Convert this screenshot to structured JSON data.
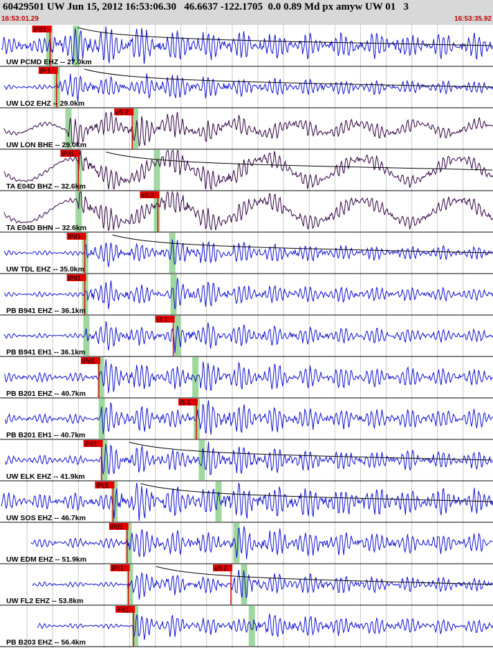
{
  "header": {
    "title": "60429501 UW Jun 15, 2012 16:53:06.30   46.6637 -122.1705  0.0 0.89 Md px amyw UW 01   3",
    "start_time": "16:53:01.29",
    "end_time": "16:53:35.92"
  },
  "colors": {
    "trace_blue": "#1010d0",
    "trace_purple": "#300040",
    "pick_red": "#e00000",
    "pick_band_green": "#9fd89f",
    "header_bg": "#d8d8d8"
  },
  "traces": [
    {
      "label": "UW PCMD EHZ -- 27.0km",
      "color": "blue",
      "style": "noise",
      "p_pick": {
        "label": "iPd1",
        "time": 3.8
      },
      "s_pick": null,
      "green": [
        3.7,
        5.8
      ],
      "decay_curve": true,
      "end": 38.6
    },
    {
      "label": "UW LO2 EHZ -- 29.0km",
      "color": "blue",
      "style": "quiet",
      "p_pick": {
        "label": "iP 1",
        "time": 4.3
      },
      "s_pick": null,
      "green": [
        4.3
      ],
      "decay_curve": true,
      "end": 38.8
    },
    {
      "label": "UW LON BHE -- 29.0km",
      "color": "purple",
      "style": "long",
      "p_pick": null,
      "s_pick": {
        "label": "eS 2",
        "time": 10.2
      },
      "green": [
        5.2,
        10.4
      ],
      "decay_curve": false,
      "end": 38.8
    },
    {
      "label": "TA E04D BHZ -- 32.6km",
      "color": "purple",
      "style": "swell",
      "p_pick": {
        "label": "iPd1",
        "time": 6.0
      },
      "s_pick": null,
      "green": [
        6.0,
        12.1
      ],
      "decay_curve": true,
      "end": 39.2
    },
    {
      "label": "TA E04D BHN -- 32.6km",
      "color": "purple",
      "style": "swell",
      "p_pick": null,
      "s_pick": {
        "label": "eS 2",
        "time": 12.2
      },
      "green": [
        6.0,
        12.1
      ],
      "decay_curve": false,
      "end": 39.2
    },
    {
      "label": "UW TDL EHZ -- 35.0km",
      "color": "blue",
      "style": "quiet",
      "p_pick": {
        "label": "iPd1",
        "time": 6.5
      },
      "s_pick": null,
      "green": [
        6.5,
        13.3
      ],
      "decay_curve": true,
      "end": 39.6
    },
    {
      "label": "PB B941 EHZ -- 36.1km",
      "color": "blue",
      "style": "quiet",
      "p_pick": {
        "label": "iPd1",
        "time": 6.5
      },
      "s_pick": null,
      "green": [
        6.5,
        13.4
      ],
      "decay_curve": false,
      "end": 40.1
    },
    {
      "label": "PB B941 EH1 -- 36.1km",
      "color": "blue",
      "style": "quiet",
      "p_pick": null,
      "s_pick": {
        "label": "iS 1",
        "time": 13.4
      },
      "green": [
        6.6,
        13.7
      ],
      "decay_curve": false,
      "end": 40.1
    },
    {
      "label": "PB B201 EHZ -- 40.7km",
      "color": "blue",
      "style": "busy",
      "p_pick": {
        "label": "iPd1",
        "time": 7.6
      },
      "s_pick": null,
      "green": [
        7.7,
        15.1
      ],
      "decay_curve": false,
      "end": 41.7
    },
    {
      "label": "PB B201 EH1 -- 40.7km",
      "color": "blue",
      "style": "busy",
      "p_pick": null,
      "s_pick": {
        "label": "iS 1",
        "time": 15.2
      },
      "green": [
        7.8,
        15.2
      ],
      "decay_curve": false,
      "end": 41.7
    },
    {
      "label": "UW ELK EHZ -- 41.9km",
      "color": "blue",
      "style": "busy",
      "p_pick": {
        "label": "iPc1",
        "time": 7.8
      },
      "s_pick": null,
      "green": [
        8.0,
        15.6
      ],
      "decay_curve": true,
      "end": 41.7
    },
    {
      "label": "UW SOS EHZ -- 46.7km",
      "color": "blue",
      "style": "noise",
      "p_pick": {
        "label": "iPc1",
        "time": 8.7
      },
      "s_pick": null,
      "green": [
        8.8,
        16.9
      ],
      "decay_curve": true,
      "end": 42.5
    },
    {
      "label": "UW EDM EHZ -- 51.9km",
      "color": "blue",
      "style": "busy",
      "p_pick": {
        "label": "iPd1",
        "time": 9.8
      },
      "s_pick": null,
      "green": [
        9.9,
        18.3
      ],
      "decay_curve": false,
      "end": 43.4
    },
    {
      "label": "UW FL2 EHZ -- 53.8km",
      "color": "blue",
      "style": "quiet",
      "p_pick": {
        "label": "iPc1",
        "time": 9.9
      },
      "s_pick": {
        "label": "eS 2",
        "time": 17.9
      },
      "green": [
        10.0,
        18.9
      ],
      "decay_curve": true,
      "end": 43.9
    },
    {
      "label": "PB B203 EHZ -- 56.4km",
      "color": "blue",
      "style": "quiet",
      "p_pick": {
        "label": "iPc1",
        "time": 10.3
      },
      "s_pick": null,
      "green": [
        10.4,
        19.5
      ],
      "decay_curve": false,
      "end": 44.2
    }
  ]
}
